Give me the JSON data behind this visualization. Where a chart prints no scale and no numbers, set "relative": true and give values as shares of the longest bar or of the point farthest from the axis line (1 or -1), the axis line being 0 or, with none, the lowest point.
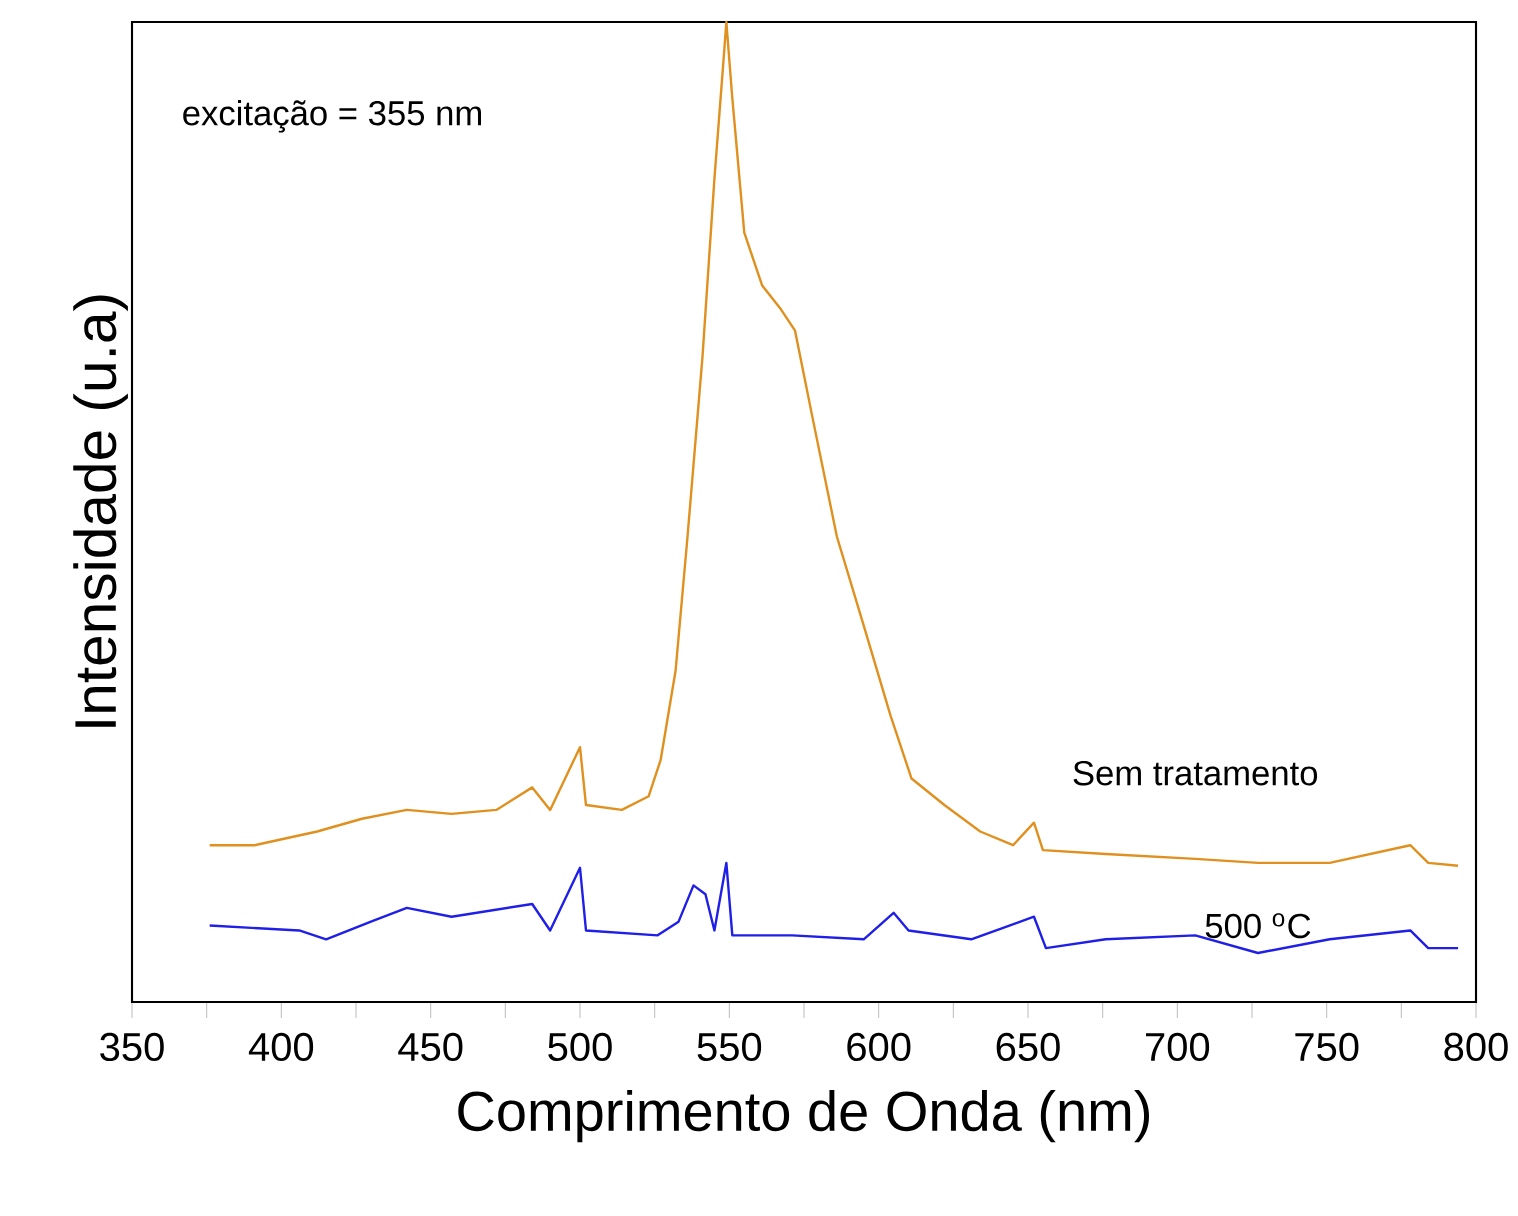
{
  "chart_data": {
    "type": "line",
    "xlabel": "Comprimento de Onda (nm)",
    "ylabel": "Intensidade (u.a)",
    "relative": true,
    "annotations": [
      "excitação = 355 nm"
    ],
    "xlim": [
      350,
      800
    ],
    "xticks": [
      350,
      {
        "value": 375,
        "label": null
      },
      400,
      {
        "value": 425,
        "label": null
      },
      450,
      {
        "value": 475,
        "label": null
      },
      500,
      {
        "value": 525,
        "label": null
      },
      550,
      {
        "value": 575,
        "label": null
      },
      600,
      {
        "value": 625,
        "label": null
      },
      650,
      {
        "value": 675,
        "label": null
      },
      700,
      {
        "value": 725,
        "label": null
      },
      750,
      {
        "value": 775,
        "label": null
      },
      800
    ],
    "tick_labels": "x",
    "grid": false,
    "series": [
      {
        "name": "Sem tratamento",
        "color": "#e0901e",
        "x": [
          376,
          391,
          412,
          427,
          442,
          457,
          472,
          484,
          490,
          500,
          502,
          514,
          523,
          527,
          532,
          536,
          541,
          545,
          548,
          549,
          551,
          555,
          561,
          567,
          572,
          578,
          586,
          595,
          604,
          611,
          622,
          634,
          645,
          652,
          655,
          676,
          706,
          727,
          751,
          778,
          784,
          794
        ],
        "values": [
          0.16,
          0.16,
          0.174,
          0.187,
          0.196,
          0.192,
          0.196,
          0.219,
          0.196,
          0.26,
          0.201,
          0.196,
          0.21,
          0.247,
          0.338,
          0.475,
          0.658,
          0.84,
          0.959,
          1.0,
          0.922,
          0.785,
          0.731,
          0.708,
          0.685,
          0.594,
          0.475,
          0.384,
          0.292,
          0.228,
          0.201,
          0.174,
          0.16,
          0.183,
          0.155,
          0.151,
          0.146,
          0.142,
          0.142,
          0.16,
          0.142,
          0.139
        ]
      },
      {
        "name": "500 $^{o}$C",
        "color": "#1f1fe8",
        "x": [
          376,
          406,
          415,
          430,
          442,
          457,
          484,
          490,
          500,
          502,
          526,
          533,
          538,
          542,
          545,
          549,
          551,
          571,
          595,
          605,
          610,
          631,
          652,
          656,
          676,
          706,
          727,
          751,
          778,
          784,
          794
        ],
        "values": [
          0.078,
          0.073,
          0.064,
          0.082,
          0.096,
          0.087,
          0.1,
          0.073,
          0.137,
          0.073,
          0.068,
          0.082,
          0.119,
          0.11,
          0.073,
          0.142,
          0.068,
          0.068,
          0.064,
          0.091,
          0.073,
          0.064,
          0.087,
          0.055,
          0.064,
          0.068,
          0.05,
          0.064,
          0.073,
          0.055,
          0.055
        ]
      }
    ]
  }
}
